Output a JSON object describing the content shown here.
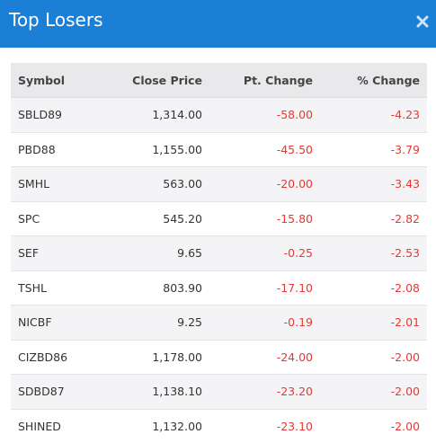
{
  "header": {
    "title": "Top Losers"
  },
  "table": {
    "columns": [
      "Symbol",
      "Close Price",
      "Pt. Change",
      "% Change"
    ],
    "rows": [
      [
        "SBLD89",
        "1,314.00",
        "-58.00",
        "-4.23"
      ],
      [
        "PBD88",
        "1,155.00",
        "-45.50",
        "-3.79"
      ],
      [
        "SMHL",
        "563.00",
        "-20.00",
        "-3.43"
      ],
      [
        "SPC",
        "545.20",
        "-15.80",
        "-2.82"
      ],
      [
        "SEF",
        "9.65",
        "-0.25",
        "-2.53"
      ],
      [
        "TSHL",
        "803.90",
        "-17.10",
        "-2.08"
      ],
      [
        "NICBF",
        "9.25",
        "-0.19",
        "-2.01"
      ],
      [
        "CIZBD86",
        "1,178.00",
        "-24.00",
        "-2.00"
      ],
      [
        "SDBD87",
        "1,138.10",
        "-23.20",
        "-2.00"
      ],
      [
        "SHINED",
        "1,132.00",
        "-23.10",
        "-2.00"
      ]
    ]
  }
}
